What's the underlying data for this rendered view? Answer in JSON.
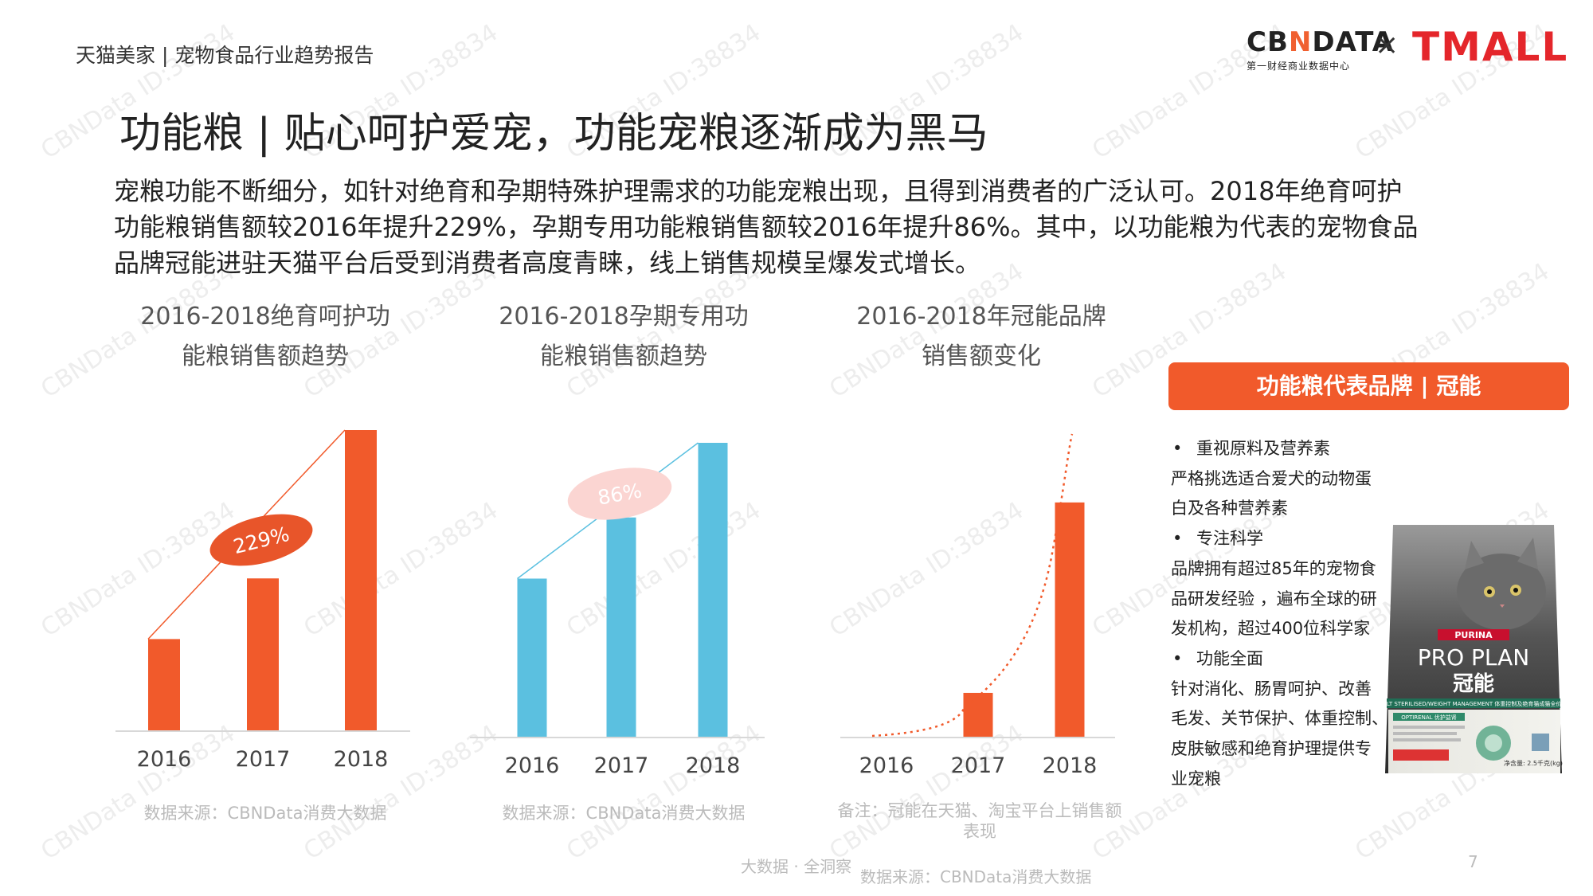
{
  "header": {
    "report_title": "天猫美家 | 宠物食品行业趋势报告",
    "logo_cbn_main_pre": "CB",
    "logo_cbn_main_n": "N",
    "logo_cbn_main_post": "DATA",
    "logo_cbn_sub": "第一财经商业数据中心",
    "logo_times": "×",
    "logo_tmall": "TMALL"
  },
  "page_title": "功能粮 | 贴心呵护爱宠，功能宠粮逐渐成为黑马",
  "intro_lines": [
    "宠粮功能不断细分，如针对绝育和孕期特殊护理需求的功能宠粮出现，且得到消费者的广泛认可。2018年绝育呵护",
    "功能粮销售额较2016年提升229%，孕期专用功能粮销售额较2016年提升86%。其中，以功能粮为代表的宠物食品",
    "品牌冠能进驻天猫平台后受到消费者高度青睐，线上销售规模呈爆发式增长。"
  ],
  "chart_data": [
    {
      "type": "bar",
      "title_lines": [
        "2016-2018绝育呵护功",
        "能粮销售额趋势"
      ],
      "categories": [
        "2016",
        "2017",
        "2018"
      ],
      "values": [
        30.4,
        50.6,
        100
      ],
      "color": "#f15a2b",
      "annotation": "229%",
      "source": "数据来源：CBNData消费大数据"
    },
    {
      "type": "bar",
      "title_lines": [
        "2016-2018孕期专用功",
        "能粮销售额趋势"
      ],
      "categories": [
        "2016",
        "2017",
        "2018"
      ],
      "values": [
        53.8,
        74.6,
        100
      ],
      "color": "#5bc0e0",
      "annotation": "86%",
      "source": "数据来源：CBNData消费大数据"
    },
    {
      "type": "bar",
      "title_lines": [
        "2016-2018年冠能品牌",
        "销售额变化"
      ],
      "categories": [
        "2016",
        "2017",
        "2018"
      ],
      "values": [
        0,
        14.3,
        76.4
      ],
      "color": "#f15a2b",
      "trend": "exponential (dotted)",
      "source_lines": [
        "备注：冠能在天猫、淘宝平台上销售额",
        "表现"
      ]
    }
  ],
  "panel": {
    "header": "功能粮代表品牌 | 冠能",
    "lines": [
      {
        "text": "重视原料及营养素",
        "bullet": true
      },
      {
        "text": "严格挑选适合爱犬的动物蛋",
        "bullet": false
      },
      {
        "text": "白及各种营养素",
        "bullet": false
      },
      {
        "text": "专注科学",
        "bullet": true
      },
      {
        "text": "品牌拥有超过85年的宠物食",
        "bullet": false
      },
      {
        "text": "品研发经验 ，遍布全球的研",
        "bullet": false
      },
      {
        "text": "发机构，超过400位科学家",
        "bullet": false
      },
      {
        "text": "功能全面",
        "bullet": true
      },
      {
        "text": "针对消化、肠胃呵护、改善",
        "bullet": false
      },
      {
        "text": "毛发、关节保护、体重控制、",
        "bullet": false
      },
      {
        "text": "皮肤敏感和绝育护理提供专",
        "bullet": false
      },
      {
        "text": "业宠粮",
        "bullet": false
      }
    ],
    "product": {
      "brand": "PURINA",
      "name": "PRO PLAN",
      "name_cn": "冠能",
      "subline": "ADULT STERILISED/WEIGHT MANAGEMENT 体重控制及绝育猫成猫全价猫粮",
      "badge": "OPTIRENAL 优护益肾",
      "net": "净含量: 2.5千克(kg)"
    }
  },
  "footer": {
    "slogan": "大数据 · 全洞察",
    "source": "数据来源：CBNData消费大数据",
    "page_number": "7"
  },
  "watermark": "CBNData ID:38834",
  "colors": {
    "accent": "#f15a2b",
    "blue": "#5bc0e0",
    "pink_bubble": "#fbd5d2",
    "tmall_red": "#e4262b"
  }
}
